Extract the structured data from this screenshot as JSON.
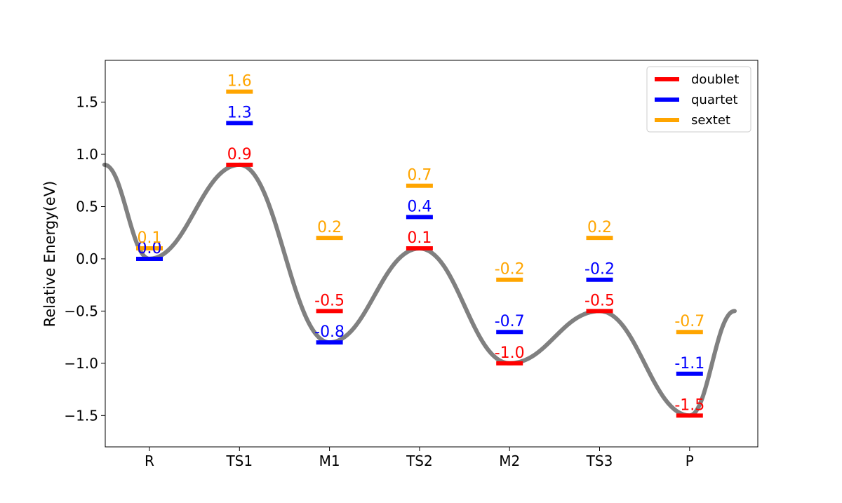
{
  "chart_data": {
    "type": "line",
    "ylabel": "Relative Energy(eV)",
    "xlabel": "",
    "title": "",
    "categories": [
      "R",
      "TS1",
      "M1",
      "TS2",
      "M2",
      "TS3",
      "P"
    ],
    "ylim": [
      -1.8,
      1.9
    ],
    "y_ticks": [
      -1.5,
      -1.0,
      -0.5,
      0.0,
      0.5,
      1.0,
      1.5
    ],
    "y_tick_labels": [
      "−1.5",
      "−1.0",
      "−0.5",
      "0.0",
      "0.5",
      "1.0",
      "1.5"
    ],
    "grid": false,
    "legend_position": "top-right",
    "series": [
      {
        "name": "doublet",
        "color": "#ff0000",
        "values": [
          0.0,
          0.9,
          -0.5,
          0.1,
          -1.0,
          -0.5,
          -1.5
        ],
        "labels": [
          "0.0",
          "0.9",
          "-0.5",
          "0.1",
          "-1.0",
          "-0.5",
          "-1.5"
        ]
      },
      {
        "name": "quartet",
        "color": "#0000ff",
        "values": [
          0.0,
          1.3,
          -0.8,
          0.4,
          -0.7,
          -0.2,
          -1.1
        ],
        "labels": [
          "0.0",
          "1.3",
          "-0.8",
          "0.4",
          "-0.7",
          "-0.2",
          "-1.1"
        ]
      },
      {
        "name": "sextet",
        "color": "#ffa500",
        "values": [
          0.1,
          1.6,
          0.2,
          0.7,
          -0.2,
          0.2,
          -0.7
        ],
        "labels": [
          "0.1",
          "1.6",
          "0.2",
          "0.7",
          "-0.2",
          "0.2",
          "-0.7"
        ]
      }
    ],
    "path_curve": {
      "color": "#808080",
      "x": [
        -0.5,
        0,
        1,
        2,
        3,
        4,
        5,
        6,
        6.5
      ],
      "y": [
        0.9,
        0.0,
        0.9,
        -0.8,
        0.1,
        -1.0,
        -0.5,
        -1.5,
        -0.5
      ]
    }
  }
}
